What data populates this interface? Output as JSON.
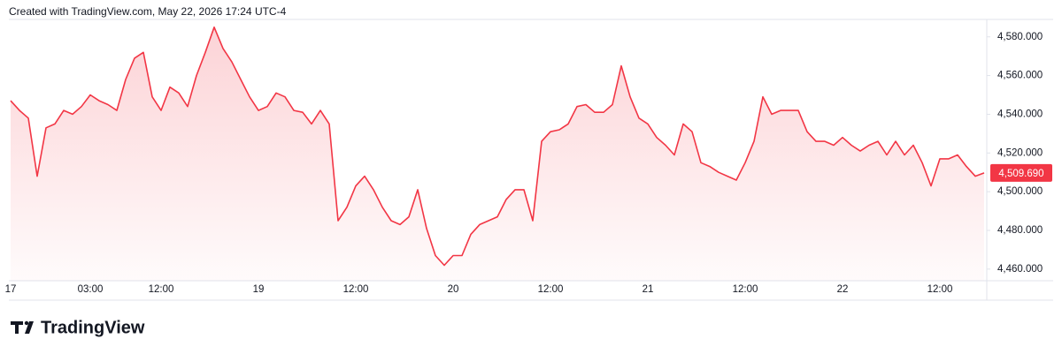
{
  "chart_data": {
    "type": "area",
    "attribution": "Created with TradingView.com, May 22, 2026 17:24 UTC-4",
    "brand": "TradingView",
    "color": "#f23645",
    "grid": false,
    "last_price_label": "4,509.690",
    "categories": [
      "17",
      null,
      null,
      null,
      null,
      null,
      null,
      null,
      null,
      "03:00",
      null,
      null,
      null,
      null,
      null,
      null,
      null,
      "12:00",
      null,
      null,
      null,
      null,
      null,
      null,
      null,
      null,
      null,
      null,
      "19",
      null,
      null,
      null,
      null,
      null,
      null,
      null,
      null,
      null,
      null,
      "12:00",
      null,
      null,
      null,
      null,
      null,
      null,
      null,
      null,
      null,
      null,
      "20",
      null,
      null,
      null,
      null,
      null,
      null,
      null,
      null,
      null,
      null,
      "12:00",
      null,
      null,
      null,
      null,
      null,
      null,
      null,
      null,
      null,
      null,
      "21",
      null,
      null,
      null,
      null,
      null,
      null,
      null,
      null,
      null,
      null,
      "12:00",
      null,
      null,
      null,
      null,
      null,
      null,
      null,
      null,
      null,
      null,
      "22",
      null,
      null,
      null,
      null,
      null,
      null,
      null,
      null,
      null,
      null,
      "12:00",
      null,
      null,
      null,
      null,
      null
    ],
    "values": [
      4547,
      4542,
      4538,
      4508,
      4533,
      4535,
      4542,
      4540,
      4544,
      4550,
      4547,
      4545,
      4542,
      4558,
      4569,
      4572,
      4549,
      4542,
      4554,
      4551,
      4544,
      4560,
      4572,
      4585,
      4574,
      4567,
      4558,
      4549,
      4542,
      4544,
      4551,
      4549,
      4542,
      4541,
      4535,
      4542,
      4535,
      4485,
      4492,
      4503,
      4508,
      4501,
      4492,
      4485,
      4483,
      4487,
      4501,
      4481,
      4467,
      4462,
      4467,
      4467,
      4478,
      4483,
      4485,
      4487,
      4496,
      4501,
      4501,
      4485,
      4526,
      4531,
      4532,
      4535,
      4544,
      4545,
      4541,
      4541,
      4545,
      4565,
      4549,
      4538,
      4535,
      4528,
      4524,
      4519,
      4535,
      4531,
      4515,
      4513,
      4510,
      4508,
      4506,
      4515,
      4526,
      4549,
      4540,
      4542,
      4542,
      4542,
      4531,
      4526,
      4526,
      4524,
      4528,
      4524,
      4521,
      4524,
      4526,
      4519,
      4526,
      4519,
      4524,
      4515,
      4503,
      4517,
      4517,
      4519,
      4513,
      4508,
      4509.69
    ],
    "ylim": [
      4454,
      4589
    ],
    "yticks": [
      {
        "value": 4460,
        "label": "4,460.000"
      },
      {
        "value": 4480,
        "label": "4,480.000"
      },
      {
        "value": 4500,
        "label": "4,500.000"
      },
      {
        "value": 4520,
        "label": "4,520.000"
      },
      {
        "value": 4540,
        "label": "4,540.000"
      },
      {
        "value": 4560,
        "label": "4,560.000"
      },
      {
        "value": 4580,
        "label": "4,580.000"
      }
    ]
  }
}
